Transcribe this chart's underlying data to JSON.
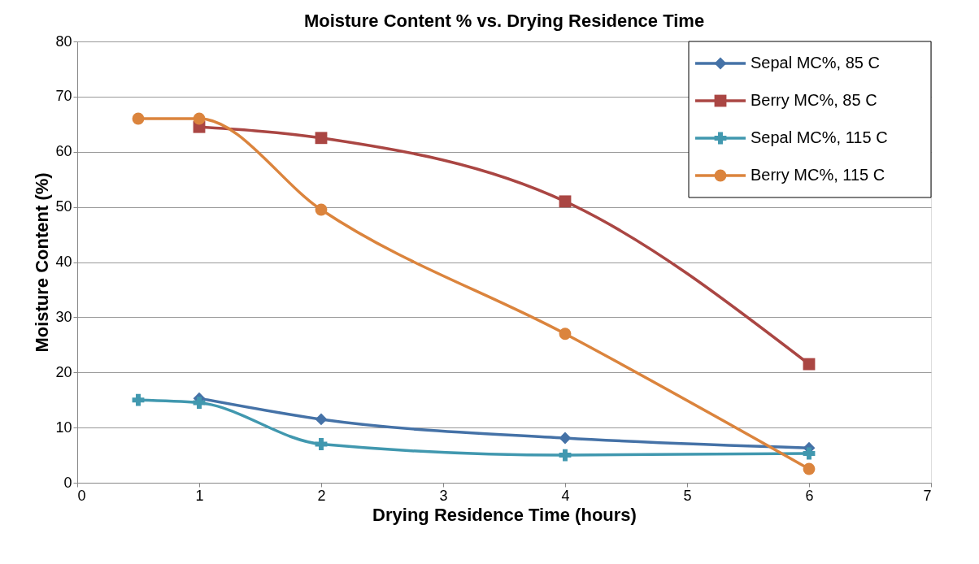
{
  "chart_data": {
    "type": "line",
    "title": "Moisture Content % vs. Drying Residence Time",
    "xlabel": "Drying Residence Time (hours)",
    "ylabel": "Moisture Content (%)",
    "xlim": [
      0,
      7
    ],
    "xticks": [
      0,
      1,
      2,
      3,
      4,
      5,
      6,
      7
    ],
    "ylim": [
      0,
      80
    ],
    "yticks": [
      0,
      10,
      20,
      30,
      40,
      50,
      60,
      70,
      80
    ],
    "grid": "y",
    "legend": "top right",
    "series": [
      {
        "name": "Sepal MC%, 85 C",
        "color": "#4572a7",
        "marker": "diamond",
        "x": [
          1,
          2,
          4,
          6
        ],
        "values": [
          15.3,
          11.5,
          8.1,
          6.3
        ]
      },
      {
        "name": "Berry MC%, 85 C",
        "color": "#aa4643",
        "marker": "square",
        "x": [
          1,
          2,
          4,
          6
        ],
        "values": [
          64.5,
          62.5,
          51,
          21.5
        ]
      },
      {
        "name": "Sepal MC%, 115 C",
        "color": "#4198af",
        "marker": "cross",
        "x": [
          0.5,
          1,
          2,
          4,
          6
        ],
        "values": [
          15,
          14.5,
          7,
          5,
          5.3
        ]
      },
      {
        "name": "Berry MC%, 115 C",
        "color": "#db843d",
        "marker": "circle",
        "x": [
          0.5,
          1,
          2,
          4,
          6
        ],
        "values": [
          66,
          66,
          49.5,
          27,
          2.5
        ]
      }
    ]
  }
}
